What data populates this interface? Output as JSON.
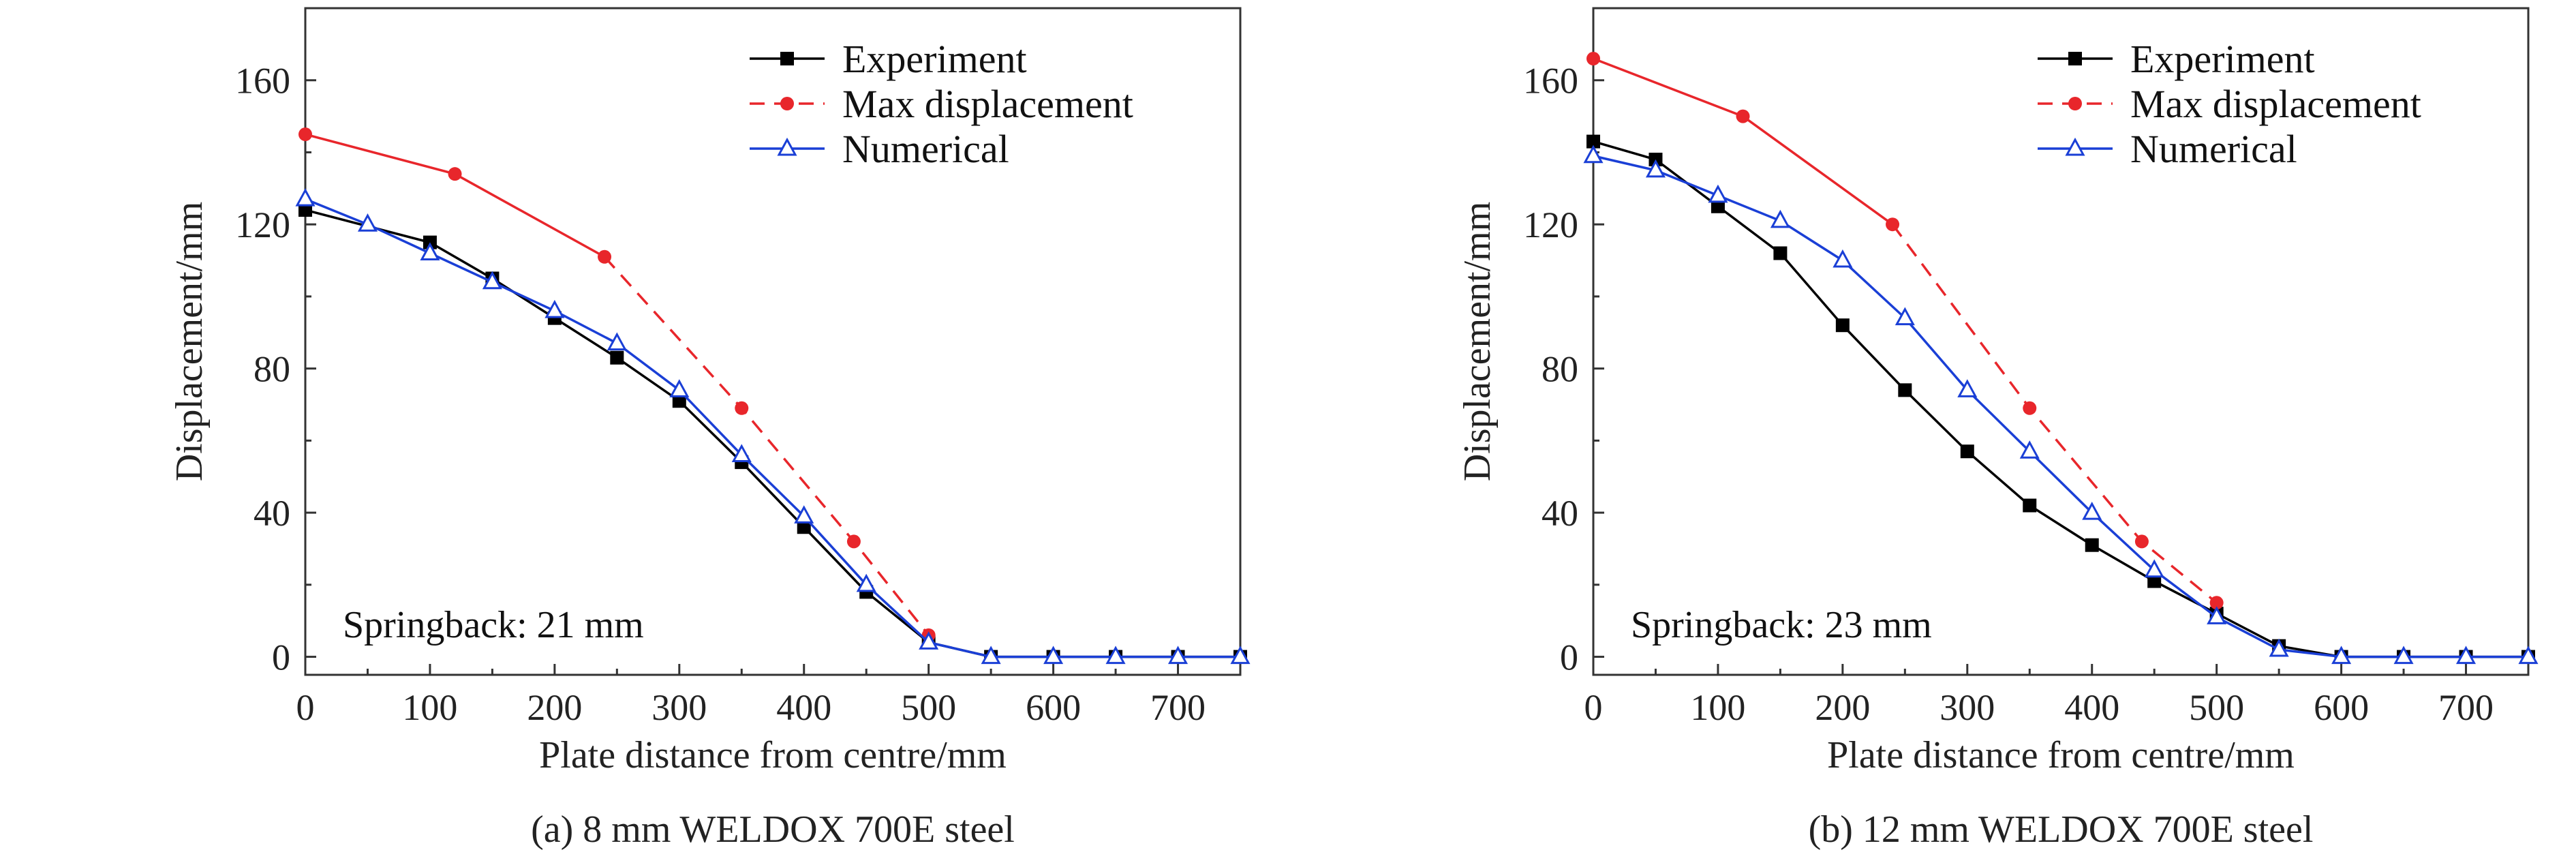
{
  "chart_data": [
    {
      "type": "line",
      "caption": "(a) 8 mm WELDOX 700E steel",
      "xlabel": "Plate distance from centre/mm",
      "ylabel": "Displacement/mm",
      "xlim": [
        0,
        750
      ],
      "ylim": [
        -5,
        180
      ],
      "xticks": [
        0,
        100,
        200,
        300,
        400,
        500,
        600,
        700
      ],
      "yticks": [
        0,
        40,
        80,
        120,
        160
      ],
      "legend_position": "top-right",
      "annotation": "Springback: 21 mm",
      "series": [
        {
          "name": "Experiment",
          "color": "#000000",
          "line": "solid",
          "marker": "filled-square",
          "points": [
            [
              0,
              124
            ],
            [
              100,
              115
            ],
            [
              150,
              105
            ],
            [
              200,
              94
            ],
            [
              250,
              83
            ],
            [
              300,
              71
            ],
            [
              350,
              54
            ],
            [
              400,
              36
            ],
            [
              450,
              18
            ],
            [
              500,
              4
            ],
            [
              550,
              0
            ],
            [
              600,
              0
            ],
            [
              650,
              0
            ],
            [
              700,
              0
            ],
            [
              750,
              0
            ]
          ]
        },
        {
          "name": "Max displacement",
          "color": "#e8262b",
          "line": "solid-then-dashed",
          "solid_until_x": 240,
          "marker": "filled-circle",
          "points": [
            [
              0,
              145
            ],
            [
              120,
              134
            ],
            [
              240,
              111
            ],
            [
              350,
              69
            ],
            [
              440,
              32
            ],
            [
              500,
              6
            ]
          ]
        },
        {
          "name": "Numerical",
          "color": "#1a3fd6",
          "line": "solid",
          "marker": "open-triangle",
          "points": [
            [
              0,
              127
            ],
            [
              50,
              120
            ],
            [
              100,
              112
            ],
            [
              150,
              104
            ],
            [
              200,
              96
            ],
            [
              250,
              87
            ],
            [
              300,
              74
            ],
            [
              350,
              56
            ],
            [
              400,
              39
            ],
            [
              450,
              20
            ],
            [
              500,
              4
            ],
            [
              550,
              0
            ],
            [
              600,
              0
            ],
            [
              650,
              0
            ],
            [
              700,
              0
            ],
            [
              750,
              0
            ]
          ]
        }
      ]
    },
    {
      "type": "line",
      "caption": "(b) 12 mm WELDOX 700E steel",
      "xlabel": "Plate distance from centre/mm",
      "ylabel": "Displacement/mm",
      "xlim": [
        0,
        750
      ],
      "ylim": [
        -5,
        180
      ],
      "xticks": [
        0,
        100,
        200,
        300,
        400,
        500,
        600,
        700
      ],
      "yticks": [
        0,
        40,
        80,
        120,
        160
      ],
      "legend_position": "top-right",
      "annotation": "Springback: 23 mm",
      "series": [
        {
          "name": "Experiment",
          "color": "#000000",
          "line": "solid",
          "marker": "filled-square",
          "points": [
            [
              0,
              143
            ],
            [
              50,
              138
            ],
            [
              100,
              125
            ],
            [
              150,
              112
            ],
            [
              200,
              92
            ],
            [
              250,
              74
            ],
            [
              300,
              57
            ],
            [
              350,
              42
            ],
            [
              400,
              31
            ],
            [
              450,
              21
            ],
            [
              500,
              12
            ],
            [
              550,
              3
            ],
            [
              600,
              0
            ],
            [
              650,
              0
            ],
            [
              700,
              0
            ],
            [
              750,
              0
            ]
          ]
        },
        {
          "name": "Max displacement",
          "color": "#e8262b",
          "line": "solid-then-dashed",
          "solid_until_x": 240,
          "marker": "filled-circle",
          "points": [
            [
              0,
              166
            ],
            [
              120,
              150
            ],
            [
              240,
              120
            ],
            [
              350,
              69
            ],
            [
              440,
              32
            ],
            [
              500,
              15
            ]
          ]
        },
        {
          "name": "Numerical",
          "color": "#1a3fd6",
          "line": "solid",
          "marker": "open-triangle",
          "points": [
            [
              0,
              139
            ],
            [
              50,
              135
            ],
            [
              100,
              128
            ],
            [
              150,
              121
            ],
            [
              200,
              110
            ],
            [
              250,
              94
            ],
            [
              300,
              74
            ],
            [
              350,
              57
            ],
            [
              400,
              40
            ],
            [
              450,
              24
            ],
            [
              500,
              11
            ],
            [
              550,
              2
            ],
            [
              600,
              0
            ],
            [
              650,
              0
            ],
            [
              700,
              0
            ],
            [
              750,
              0
            ]
          ]
        }
      ]
    }
  ]
}
